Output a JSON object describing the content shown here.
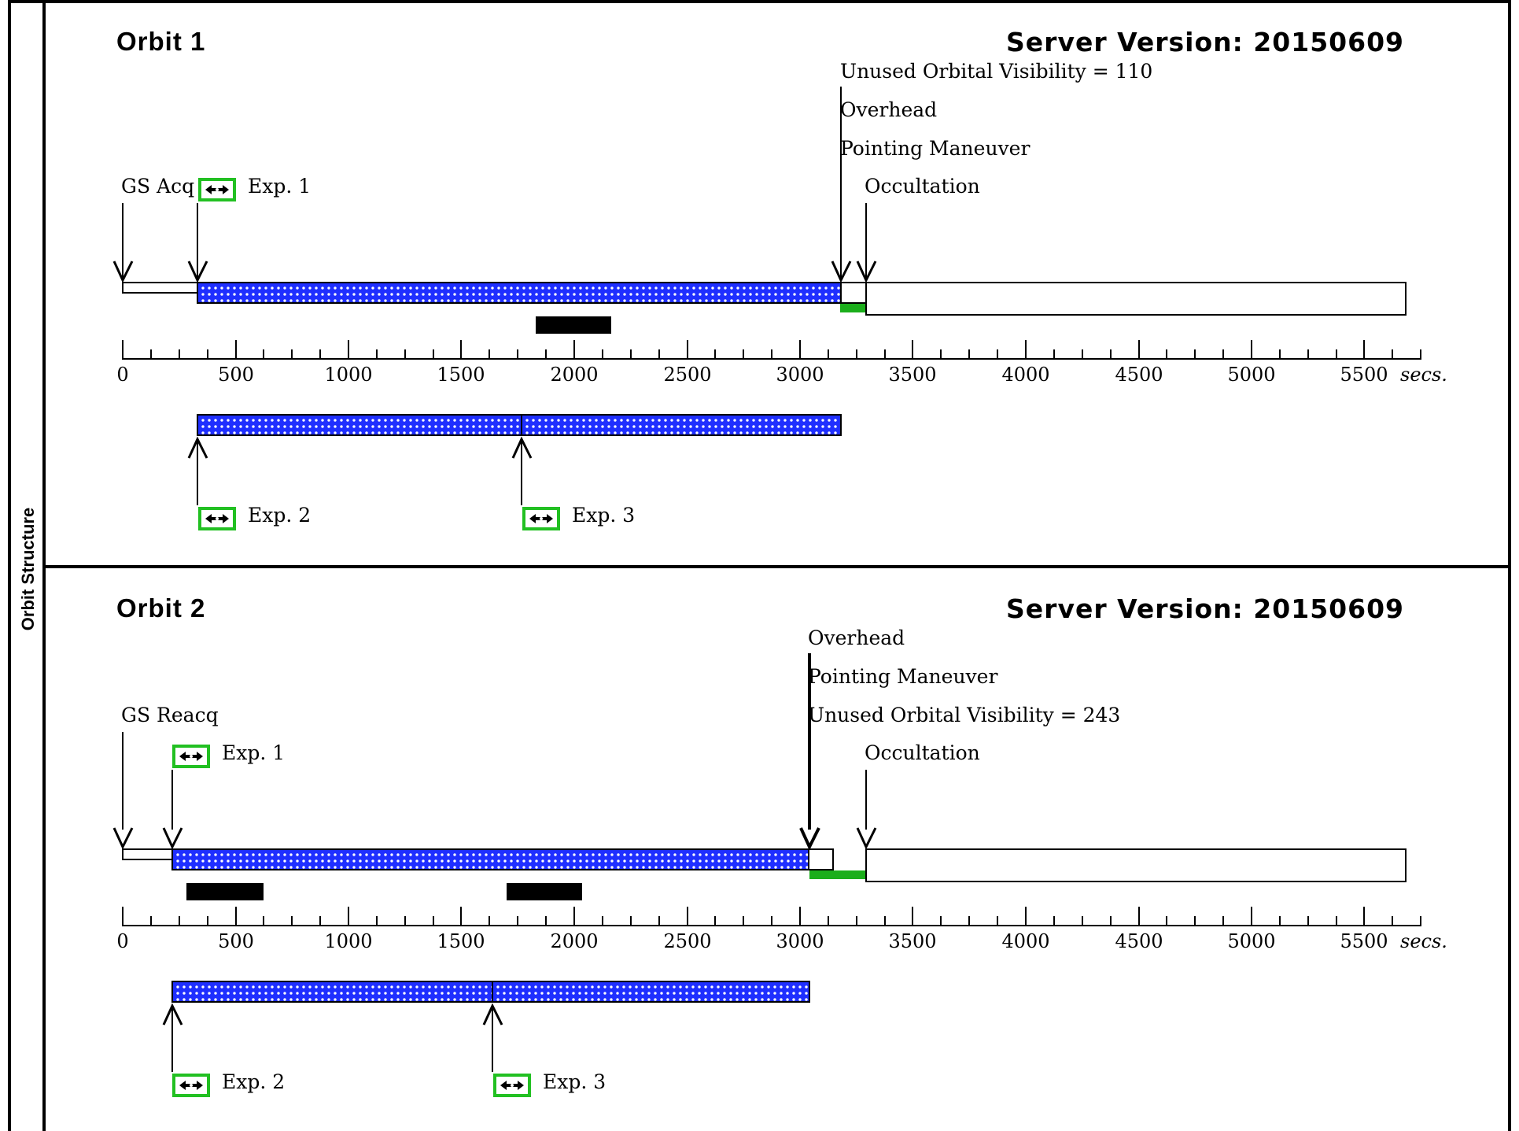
{
  "side_label": "Orbit Structure",
  "colors": {
    "exposure_fill": "#1f2fff",
    "visibility_green": "#1bae1b",
    "button_border": "#22c022"
  },
  "axis": {
    "tick_labels": [
      "0",
      "500",
      "1000",
      "1500",
      "2000",
      "2500",
      "3000",
      "3500",
      "4000",
      "4500",
      "5000",
      "5500"
    ],
    "unit": "secs."
  },
  "orbits": [
    {
      "title": "Orbit 1",
      "server_version": "Server Version: 20150609",
      "acq_label": "GS Acq",
      "exp1_label": "Exp. 1",
      "exp2_label": "Exp. 2",
      "exp3_label": "Exp. 3",
      "unused_label": "Unused Orbital Visibility = 110",
      "overhead_label": "Overhead",
      "pointing_label": "Pointing Maneuver",
      "occultation_label": "Occultation",
      "exp_button_icon": "expand-horizontal-icon"
    },
    {
      "title": "Orbit 2",
      "server_version": "Server Version: 20150609",
      "acq_label": "GS Reacq",
      "exp1_label": "Exp. 1",
      "exp2_label": "Exp. 2",
      "exp3_label": "Exp. 3",
      "unused_label": "Unused Orbital Visibility = 243",
      "overhead_label": "Overhead",
      "pointing_label": "Pointing Maneuver",
      "occultation_label": "Occultation",
      "exp_button_icon": "expand-horizontal-icon"
    }
  ]
}
